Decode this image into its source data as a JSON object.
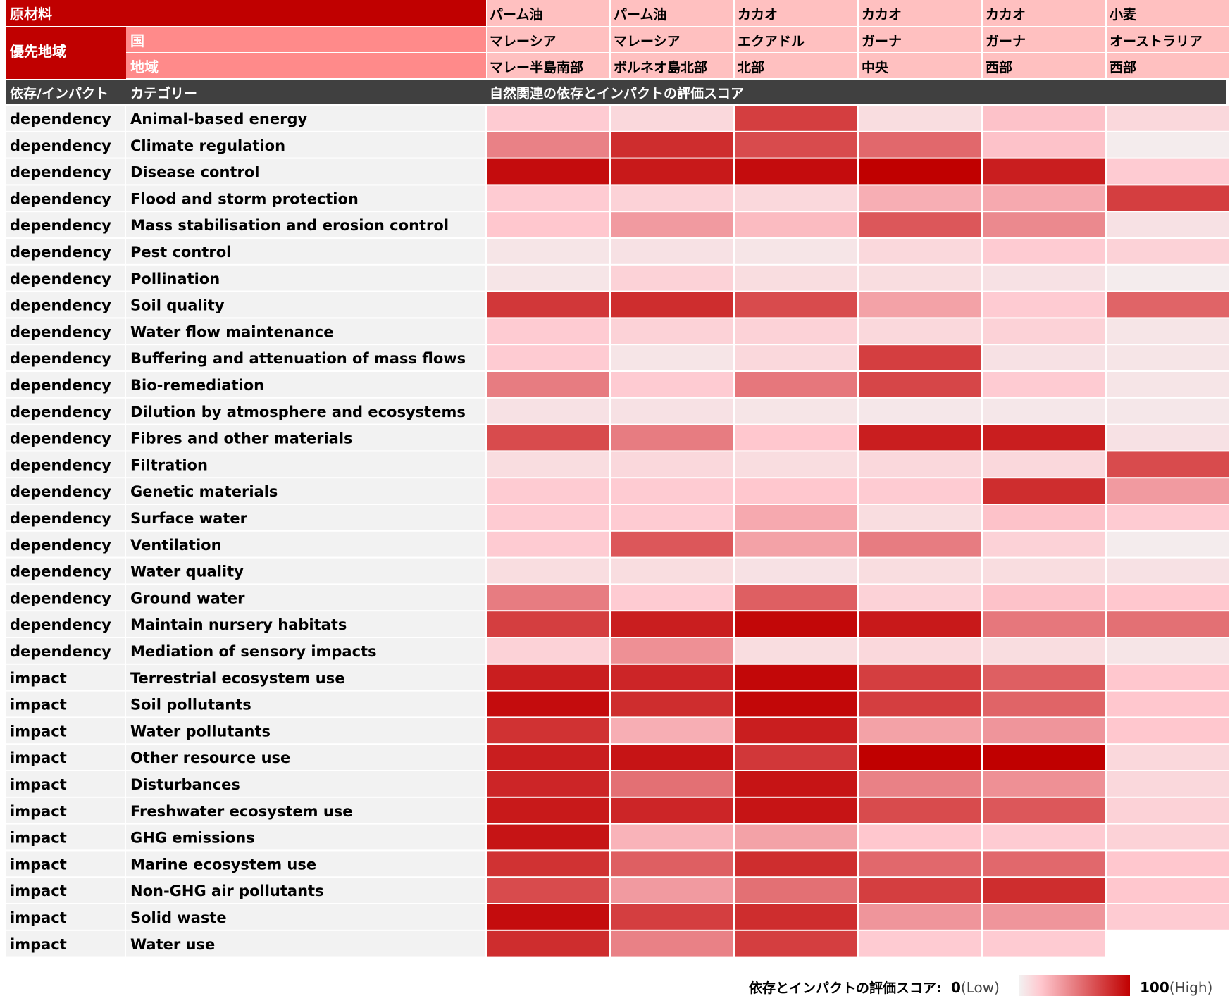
{
  "chart_data": {
    "type": "heatmap",
    "header": {
      "material_label": "原材料",
      "priority_label": "優先地域",
      "country_label": "国",
      "region_label": "地域",
      "dep_imp_label": "依存/インパクト",
      "category_label": "カテゴリー",
      "score_title": "自然関連の依存とインパクトの評価スコア"
    },
    "columns": [
      {
        "material": "パーム油",
        "country": "マレーシア",
        "region": "マレー半島南部"
      },
      {
        "material": "パーム油",
        "country": "マレーシア",
        "region": "ボルネオ島北部"
      },
      {
        "material": "カカオ",
        "country": "エクアドル",
        "region": "北部"
      },
      {
        "material": "カカオ",
        "country": "ガーナ",
        "region": "中央"
      },
      {
        "material": "カカオ",
        "country": "ガーナ",
        "region": "西部"
      },
      {
        "material": "小麦",
        "country": "オーストラリア",
        "region": "西部"
      }
    ],
    "rows": [
      {
        "type": "dependency",
        "category": "Animal-based energy",
        "values": [
          18,
          12,
          75,
          10,
          22,
          12
        ]
      },
      {
        "type": "dependency",
        "category": "Climate regulation",
        "values": [
          48,
          82,
          70,
          58,
          22,
          3
        ]
      },
      {
        "type": "dependency",
        "category": "Disease control",
        "values": [
          95,
          90,
          95,
          100,
          88,
          18
        ]
      },
      {
        "type": "dependency",
        "category": "Flood and storm protection",
        "values": [
          18,
          15,
          12,
          30,
          32,
          75
        ]
      },
      {
        "type": "dependency",
        "category": "Mass stabilisation and erosion control",
        "values": [
          20,
          38,
          25,
          65,
          45,
          8
        ]
      },
      {
        "type": "dependency",
        "category": "Pest control",
        "values": [
          6,
          8,
          6,
          12,
          18,
          15
        ]
      },
      {
        "type": "dependency",
        "category": "Pollination",
        "values": [
          6,
          15,
          10,
          10,
          8,
          3
        ]
      },
      {
        "type": "dependency",
        "category": "Soil quality",
        "values": [
          78,
          82,
          70,
          35,
          18,
          60
        ]
      },
      {
        "type": "dependency",
        "category": "Water flow maintenance",
        "values": [
          18,
          15,
          15,
          12,
          15,
          6
        ]
      },
      {
        "type": "dependency",
        "category": "Buffering and attenuation of mass flows",
        "values": [
          18,
          6,
          12,
          75,
          8,
          6
        ]
      },
      {
        "type": "dependency",
        "category": "Bio-remediation",
        "values": [
          50,
          18,
          52,
          72,
          18,
          6
        ]
      },
      {
        "type": "dependency",
        "category": "Dilution by atmosphere and ecosystems",
        "values": [
          8,
          8,
          6,
          5,
          5,
          5
        ]
      },
      {
        "type": "dependency",
        "category": "Fibres and other materials",
        "values": [
          70,
          50,
          20,
          88,
          88,
          8
        ]
      },
      {
        "type": "dependency",
        "category": "Filtration",
        "values": [
          10,
          12,
          10,
          12,
          12,
          70
        ]
      },
      {
        "type": "dependency",
        "category": "Genetic materials",
        "values": [
          18,
          18,
          20,
          18,
          82,
          38
        ]
      },
      {
        "type": "dependency",
        "category": "Surface water",
        "values": [
          18,
          18,
          32,
          10,
          22,
          18
        ]
      },
      {
        "type": "dependency",
        "category": "Ventilation",
        "values": [
          18,
          65,
          35,
          50,
          15,
          3
        ]
      },
      {
        "type": "dependency",
        "category": "Water quality",
        "values": [
          10,
          10,
          8,
          10,
          10,
          8
        ]
      },
      {
        "type": "dependency",
        "category": "Ground water",
        "values": [
          50,
          18,
          62,
          15,
          22,
          20
        ]
      },
      {
        "type": "dependency",
        "category": "Maintain nursery habitats",
        "values": [
          75,
          88,
          97,
          90,
          52,
          55
        ]
      },
      {
        "type": "dependency",
        "category": "Mediation of sensory impacts",
        "values": [
          15,
          42,
          10,
          12,
          10,
          6
        ]
      },
      {
        "type": "impact",
        "category": "Terrestrial ecosystem use",
        "values": [
          88,
          85,
          97,
          75,
          62,
          20
        ]
      },
      {
        "type": "impact",
        "category": "Soil pollutants",
        "values": [
          95,
          82,
          97,
          75,
          60,
          20
        ]
      },
      {
        "type": "impact",
        "category": "Water pollutants",
        "values": [
          80,
          30,
          88,
          35,
          40,
          20
        ]
      },
      {
        "type": "impact",
        "category": "Other resource use",
        "values": [
          88,
          92,
          78,
          100,
          100,
          12
        ]
      },
      {
        "type": "impact",
        "category": "Disturbances",
        "values": [
          85,
          55,
          92,
          48,
          42,
          12
        ]
      },
      {
        "type": "impact",
        "category": "Freshwater ecosystem use",
        "values": [
          90,
          85,
          92,
          70,
          65,
          15
        ]
      },
      {
        "type": "impact",
        "category": "GHG emissions",
        "values": [
          92,
          28,
          35,
          20,
          18,
          15
        ]
      },
      {
        "type": "impact",
        "category": "Marine ecosystem use",
        "values": [
          80,
          62,
          82,
          58,
          58,
          20
        ]
      },
      {
        "type": "impact",
        "category": "Non-GHG air pollutants",
        "values": [
          70,
          38,
          55,
          75,
          82,
          20
        ]
      },
      {
        "type": "impact",
        "category": "Solid waste",
        "values": [
          95,
          75,
          82,
          40,
          40,
          18
        ]
      },
      {
        "type": "impact",
        "category": "Water use",
        "values": [
          82,
          48,
          75,
          18,
          18,
          null
        ]
      }
    ],
    "legend": {
      "label": "依存とインパクトの評価スコア:",
      "min_value": "0",
      "min_text": "(Low)",
      "max_value": "100",
      "max_text": "(High)"
    },
    "colors": {
      "low": "#f2f2f2",
      "high": "#c00000",
      "header_dark": "#c00000",
      "header_mid": "#ff8a8a",
      "header_light": "#ffc0c0",
      "header_bar": "#404040",
      "row_label_bg": "#f2f2f2"
    }
  }
}
